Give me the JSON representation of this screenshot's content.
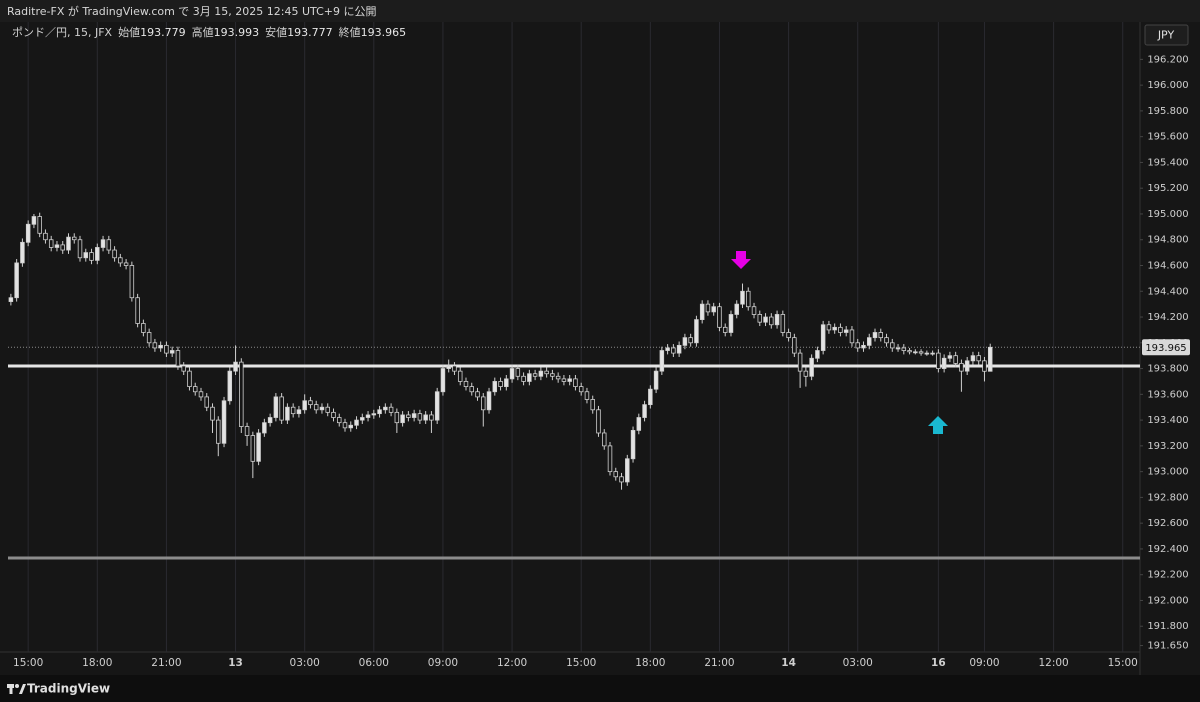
{
  "header": {
    "text": "Raditre-FX が TradingView.com で 3月 15, 2025 12:45 UTC+9 に公開"
  },
  "footer": {
    "brand": "TradingView"
  },
  "chart_data": {
    "type": "candlestick",
    "symbol": "ポンド／円, 15, JFX",
    "legend_labels": {
      "open": "始値",
      "high": "高値",
      "low": "安値",
      "close": "終値"
    },
    "currency": "JPY",
    "up_color": "#e3e3e3",
    "down_color": "#161616",
    "wick_color": "#cfcfcf",
    "open": [
      194.32,
      194.35,
      194.62,
      194.78,
      194.92,
      194.98,
      194.85,
      194.8,
      194.74,
      194.76,
      194.72,
      194.82,
      194.8,
      194.66,
      194.7,
      194.64,
      194.74,
      194.8,
      194.72,
      194.66,
      194.62,
      194.6,
      194.35,
      194.15,
      194.08,
      194.0,
      193.96,
      193.98,
      193.92,
      193.94,
      193.82,
      193.78,
      193.66,
      193.62,
      193.58,
      193.5,
      193.4,
      193.22,
      193.55,
      193.78,
      193.85,
      193.35,
      193.28,
      193.08,
      193.3,
      193.38,
      193.42,
      193.58,
      193.4,
      193.5,
      193.45,
      193.48,
      193.55,
      193.52,
      193.48,
      193.5,
      193.46,
      193.42,
      193.38,
      193.34,
      193.36,
      193.4,
      193.42,
      193.44,
      193.45,
      193.48,
      193.5,
      193.46,
      193.38,
      193.44,
      193.42,
      193.45,
      193.4,
      193.44,
      193.4,
      193.62,
      193.8,
      193.82,
      193.78,
      193.7,
      193.66,
      193.62,
      193.58,
      193.48,
      193.62,
      193.7,
      193.66,
      193.72,
      193.8,
      193.74,
      193.7,
      193.76,
      193.74,
      193.78,
      193.76,
      193.74,
      193.72,
      193.7,
      193.72,
      193.66,
      193.62,
      193.56,
      193.48,
      193.3,
      193.2,
      193.0,
      192.96,
      192.92,
      193.1,
      193.32,
      193.42,
      193.52,
      193.64,
      193.78,
      193.94,
      193.96,
      193.92,
      193.98,
      194.04,
      194.0,
      194.18,
      194.3,
      194.24,
      194.28,
      194.12,
      194.08,
      194.22,
      194.3,
      194.4,
      194.28,
      194.22,
      194.16,
      194.2,
      194.14,
      194.22,
      194.08,
      194.04,
      193.92,
      193.78,
      193.74,
      193.88,
      193.94,
      194.14,
      194.1,
      194.12,
      194.08,
      194.1,
      194.0,
      193.96,
      193.98,
      194.04,
      194.08,
      194.04,
      194.0,
      193.96,
      193.96,
      193.94,
      193.93,
      193.93,
      193.92,
      193.92,
      193.92,
      193.8,
      193.88,
      193.9,
      193.84,
      193.78,
      193.86,
      193.9,
      193.86,
      193.779
    ],
    "high": [
      194.38,
      194.65,
      194.81,
      194.95,
      195.0,
      195.01,
      194.88,
      194.83,
      194.79,
      194.79,
      194.85,
      194.85,
      194.83,
      194.73,
      194.73,
      194.77,
      194.83,
      194.83,
      194.75,
      194.69,
      194.65,
      194.63,
      194.38,
      194.18,
      194.11,
      194.03,
      194.01,
      194.01,
      193.97,
      193.97,
      193.85,
      193.81,
      193.69,
      193.65,
      193.61,
      193.53,
      193.43,
      193.58,
      193.81,
      193.98,
      193.88,
      193.38,
      193.31,
      193.33,
      193.41,
      193.45,
      193.61,
      193.61,
      193.53,
      193.53,
      193.51,
      193.6,
      193.58,
      193.55,
      193.53,
      193.53,
      193.49,
      193.45,
      193.41,
      193.39,
      193.43,
      193.45,
      193.47,
      193.48,
      193.51,
      193.53,
      193.53,
      193.49,
      193.47,
      193.47,
      193.48,
      193.48,
      193.47,
      193.47,
      193.65,
      193.83,
      193.87,
      193.85,
      193.81,
      193.73,
      193.69,
      193.65,
      193.61,
      193.65,
      193.73,
      193.73,
      193.75,
      193.83,
      193.83,
      193.77,
      193.79,
      193.79,
      193.81,
      193.81,
      193.79,
      193.77,
      193.75,
      193.75,
      193.75,
      193.69,
      193.65,
      193.59,
      193.51,
      193.33,
      193.23,
      193.03,
      192.99,
      193.13,
      193.35,
      193.45,
      193.55,
      193.67,
      193.81,
      193.97,
      193.99,
      193.99,
      194.01,
      194.07,
      194.07,
      194.21,
      194.33,
      194.33,
      194.31,
      194.31,
      194.15,
      194.25,
      194.33,
      194.46,
      194.43,
      194.31,
      194.25,
      194.23,
      194.23,
      194.25,
      194.25,
      194.11,
      194.07,
      193.95,
      193.81,
      193.91,
      193.97,
      194.17,
      194.17,
      194.15,
      194.15,
      194.13,
      194.13,
      194.03,
      194.01,
      194.07,
      194.11,
      194.11,
      194.07,
      194.03,
      193.99,
      193.99,
      193.96,
      193.95,
      193.95,
      193.94,
      193.94,
      193.95,
      193.91,
      193.93,
      193.93,
      193.87,
      193.89,
      193.93,
      193.93,
      193.89,
      193.993
    ],
    "low": [
      194.29,
      194.32,
      194.59,
      194.75,
      194.89,
      194.82,
      194.77,
      194.71,
      194.71,
      194.69,
      194.69,
      194.77,
      194.63,
      194.63,
      194.61,
      194.61,
      194.71,
      194.69,
      194.63,
      194.59,
      194.57,
      194.32,
      194.12,
      194.05,
      193.97,
      193.93,
      193.93,
      193.89,
      193.89,
      193.79,
      193.75,
      193.63,
      193.59,
      193.55,
      193.47,
      193.3,
      193.12,
      193.19,
      193.52,
      193.75,
      193.3,
      193.2,
      192.95,
      193.05,
      193.27,
      193.35,
      193.39,
      193.37,
      193.37,
      193.42,
      193.42,
      193.45,
      193.49,
      193.45,
      193.45,
      193.43,
      193.39,
      193.35,
      193.31,
      193.31,
      193.33,
      193.37,
      193.39,
      193.41,
      193.42,
      193.45,
      193.43,
      193.3,
      193.35,
      193.39,
      193.39,
      193.37,
      193.37,
      193.3,
      193.37,
      193.59,
      193.77,
      193.75,
      193.67,
      193.63,
      193.59,
      193.55,
      193.35,
      193.45,
      193.59,
      193.63,
      193.63,
      193.69,
      193.71,
      193.67,
      193.67,
      193.71,
      193.71,
      193.73,
      193.71,
      193.69,
      193.67,
      193.67,
      193.63,
      193.59,
      193.53,
      193.45,
      193.27,
      193.17,
      192.97,
      192.93,
      192.86,
      192.89,
      193.07,
      193.29,
      193.39,
      193.49,
      193.61,
      193.75,
      193.91,
      193.89,
      193.89,
      193.95,
      193.97,
      193.97,
      194.15,
      194.21,
      194.21,
      194.09,
      194.05,
      194.05,
      194.19,
      194.27,
      194.25,
      194.19,
      194.13,
      194.13,
      194.11,
      194.11,
      194.05,
      194.01,
      193.89,
      193.65,
      193.66,
      193.71,
      193.85,
      193.91,
      194.07,
      194.07,
      194.05,
      194.05,
      193.97,
      193.93,
      193.93,
      193.95,
      194.01,
      194.01,
      193.97,
      193.93,
      193.93,
      193.91,
      193.91,
      193.91,
      193.9,
      193.9,
      193.9,
      193.77,
      193.77,
      193.85,
      193.81,
      193.62,
      193.75,
      193.83,
      193.83,
      193.7,
      193.777
    ],
    "close": [
      194.35,
      194.62,
      194.78,
      194.92,
      194.98,
      194.85,
      194.8,
      194.74,
      194.76,
      194.72,
      194.82,
      194.8,
      194.66,
      194.7,
      194.64,
      194.74,
      194.8,
      194.72,
      194.66,
      194.62,
      194.6,
      194.35,
      194.15,
      194.08,
      194.0,
      193.96,
      193.98,
      193.92,
      193.94,
      193.82,
      193.78,
      193.66,
      193.62,
      193.58,
      193.5,
      193.4,
      193.22,
      193.55,
      193.78,
      193.85,
      193.35,
      193.28,
      193.08,
      193.3,
      193.38,
      193.42,
      193.58,
      193.4,
      193.5,
      193.45,
      193.48,
      193.55,
      193.52,
      193.48,
      193.5,
      193.46,
      193.42,
      193.38,
      193.34,
      193.36,
      193.4,
      193.42,
      193.44,
      193.45,
      193.48,
      193.5,
      193.46,
      193.38,
      193.44,
      193.42,
      193.45,
      193.4,
      193.44,
      193.4,
      193.62,
      193.8,
      193.82,
      193.78,
      193.7,
      193.66,
      193.62,
      193.58,
      193.48,
      193.62,
      193.7,
      193.66,
      193.72,
      193.8,
      193.74,
      193.7,
      193.76,
      193.74,
      193.78,
      193.76,
      193.74,
      193.72,
      193.7,
      193.72,
      193.66,
      193.62,
      193.56,
      193.48,
      193.3,
      193.2,
      193.0,
      192.96,
      192.92,
      193.1,
      193.32,
      193.42,
      193.52,
      193.64,
      193.78,
      193.94,
      193.96,
      193.92,
      193.98,
      194.04,
      194.0,
      194.18,
      194.3,
      194.24,
      194.28,
      194.12,
      194.08,
      194.22,
      194.3,
      194.4,
      194.28,
      194.22,
      194.16,
      194.2,
      194.14,
      194.22,
      194.08,
      194.04,
      193.92,
      193.78,
      193.74,
      193.88,
      193.94,
      194.14,
      194.1,
      194.12,
      194.08,
      194.1,
      194.0,
      193.96,
      193.98,
      194.04,
      194.08,
      194.04,
      194.0,
      193.96,
      193.96,
      193.94,
      193.93,
      193.93,
      193.92,
      193.92,
      193.92,
      193.8,
      193.88,
      193.9,
      193.84,
      193.78,
      193.86,
      193.9,
      193.86,
      193.779,
      193.965
    ],
    "hlines": [
      {
        "value": 193.82,
        "color": "#e6e6e6"
      },
      {
        "value": 192.33,
        "color": "#8c8c8c"
      }
    ],
    "xlim": [
      -0.5,
      196
    ],
    "xticks": [
      {
        "value": 3,
        "label": "15:00"
      },
      {
        "value": 15,
        "label": "18:00"
      },
      {
        "value": 27,
        "label": "21:00"
      },
      {
        "value": 39,
        "label": "13"
      },
      {
        "value": 51,
        "label": "03:00"
      },
      {
        "value": 63,
        "label": "06:00"
      },
      {
        "value": 75,
        "label": "09:00"
      },
      {
        "value": 87,
        "label": "12:00"
      },
      {
        "value": 99,
        "label": "15:00"
      },
      {
        "value": 111,
        "label": "18:00"
      },
      {
        "value": 123,
        "label": "21:00"
      },
      {
        "value": 135,
        "label": "14"
      },
      {
        "value": 147,
        "label": "03:00"
      },
      {
        "value": 161,
        "label": "16"
      },
      {
        "value": 169,
        "label": "09:00"
      },
      {
        "value": 181,
        "label": "12:00"
      },
      {
        "value": 193,
        "label": "15:00"
      }
    ],
    "ylim": [
      191.6,
      196.49
    ],
    "yticks": [
      {
        "value": 191.65,
        "label": "191.650"
      },
      {
        "value": 191.8,
        "label": "191.800"
      },
      {
        "value": 192.0,
        "label": "192.000"
      },
      {
        "value": 192.2,
        "label": "192.200"
      },
      {
        "value": 192.4,
        "label": "192.400"
      },
      {
        "value": 192.6,
        "label": "192.600"
      },
      {
        "value": 192.8,
        "label": "192.800"
      },
      {
        "value": 193.0,
        "label": "193.000"
      },
      {
        "value": 193.2,
        "label": "193.200"
      },
      {
        "value": 193.4,
        "label": "193.400"
      },
      {
        "value": 193.6,
        "label": "193.600"
      },
      {
        "value": 193.8,
        "label": "193.800"
      },
      {
        "value": 194.0,
        "label": "194.000"
      },
      {
        "value": 194.2,
        "label": "194.200"
      },
      {
        "value": 194.4,
        "label": "194.400"
      },
      {
        "value": 194.6,
        "label": "194.600"
      },
      {
        "value": 194.8,
        "label": "194.800"
      },
      {
        "value": 195.0,
        "label": "195.000"
      },
      {
        "value": 195.2,
        "label": "195.200"
      },
      {
        "value": 195.4,
        "label": "195.400"
      },
      {
        "value": 195.6,
        "label": "195.600"
      },
      {
        "value": 195.8,
        "label": "195.800"
      },
      {
        "value": 196.0,
        "label": "196.000"
      },
      {
        "value": 196.2,
        "label": "196.200"
      }
    ],
    "xgrid": true
  }
}
